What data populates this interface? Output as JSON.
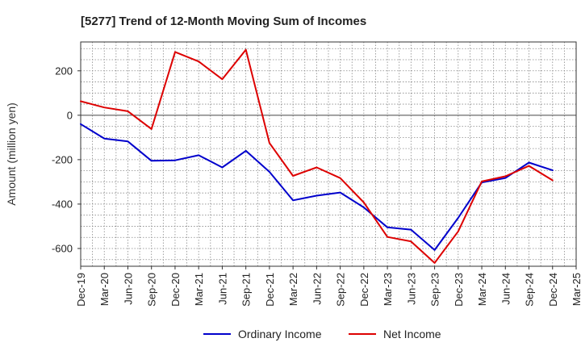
{
  "chart_data": {
    "type": "line",
    "title": "[5277]  Trend of 12-Month Moving Sum of Incomes",
    "xlabel": "",
    "ylabel": "Amount (million yen)",
    "ylim": [
      -680,
      330
    ],
    "yticks": [
      200,
      0,
      -200,
      -400,
      -600
    ],
    "grid": true,
    "legend_position": "bottom-center",
    "categories": [
      "Dec-19",
      "Mar-20",
      "Jun-20",
      "Sep-20",
      "Dec-20",
      "Mar-21",
      "Jun-21",
      "Sep-21",
      "Dec-21",
      "Mar-22",
      "Jun-22",
      "Sep-22",
      "Dec-22",
      "Mar-23",
      "Jun-23",
      "Sep-23",
      "Dec-23",
      "Mar-24",
      "Jun-24",
      "Sep-24",
      "Dec-24",
      "Mar-25"
    ],
    "series": [
      {
        "name": "Ordinary Income",
        "color": "#0000cc",
        "values": [
          -40,
          -105,
          -118,
          -205,
          -203,
          -180,
          -235,
          -160,
          -255,
          -383,
          -362,
          -348,
          -415,
          -505,
          -515,
          -607,
          -462,
          -303,
          -283,
          -213,
          -248,
          null
        ]
      },
      {
        "name": "Net Income",
        "color": "#dd0000",
        "values": [
          63,
          35,
          18,
          -62,
          285,
          242,
          162,
          295,
          -125,
          -273,
          -235,
          -283,
          -393,
          -548,
          -568,
          -665,
          -523,
          -298,
          -275,
          -228,
          -293,
          null
        ]
      }
    ]
  }
}
